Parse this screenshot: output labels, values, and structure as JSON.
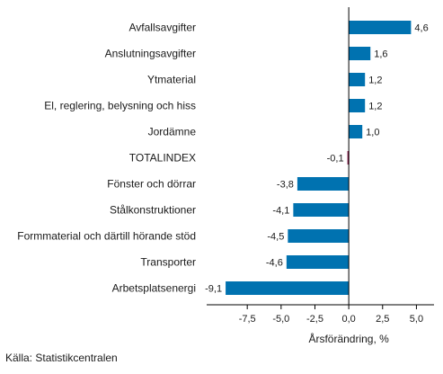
{
  "chart_data": {
    "type": "bar",
    "orientation": "horizontal",
    "categories": [
      "Avfallsavgifter",
      "Anslutningsavgifter",
      "Ytmaterial",
      "El, reglering, belysning och hiss",
      "Jordämne",
      "TOTALINDEX",
      "Fönster och dörrar",
      "Stålkonstruktioner",
      "Formmaterial och därtill hörande stöd",
      "Transporter",
      "Arbetsplatsenergi"
    ],
    "values": [
      4.6,
      1.6,
      1.2,
      1.2,
      1.0,
      -0.1,
      -3.8,
      -4.1,
      -4.5,
      -4.6,
      -9.1
    ],
    "value_labels": [
      "4,6",
      "1,6",
      "1,2",
      "1,2",
      "1,0",
      "-0,1",
      "-3,8",
      "-4,1",
      "-4,5",
      "-4,6",
      "-9,1"
    ],
    "highlight_category": "TOTALINDEX",
    "colors": {
      "bar": "#0072b0",
      "highlight": "#8b1a4a",
      "axis": "#000000"
    },
    "xlim": [
      -10.5,
      6.3
    ],
    "xticks": [
      -7.5,
      -5.0,
      -2.5,
      0.0,
      2.5,
      5.0
    ],
    "xtick_labels": [
      "-7,5",
      "-5,0",
      "-2,5",
      "0,0",
      "2,5",
      "5,0"
    ],
    "xlabel": "Årsförändring, %",
    "grid": false,
    "legend": "none"
  },
  "source": "Källa: Statistikcentralen"
}
